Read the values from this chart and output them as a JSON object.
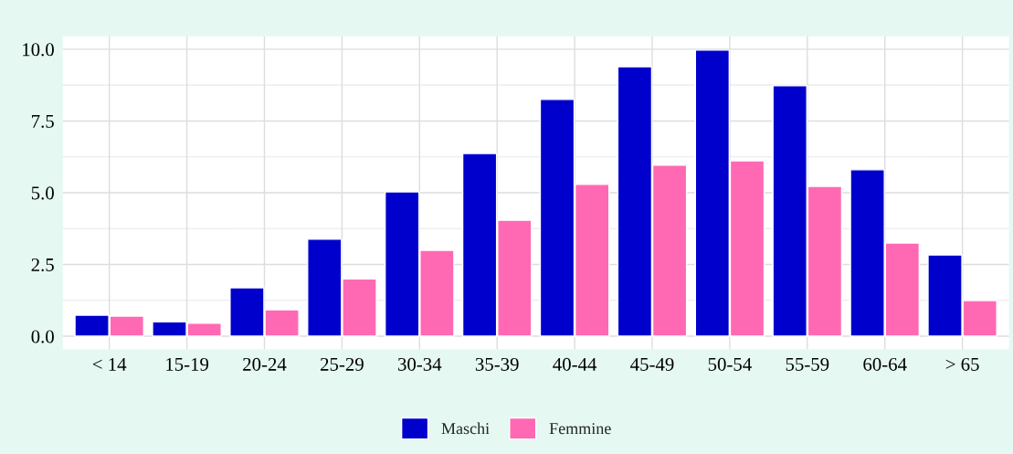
{
  "chart_data": {
    "type": "bar",
    "categories": [
      "< 14",
      "15-19",
      "20-24",
      "25-29",
      "30-34",
      "35-39",
      "40-44",
      "45-49",
      "50-54",
      "55-59",
      "60-64",
      "> 65"
    ],
    "series": [
      {
        "name": "Maschi",
        "color": "#0000cd",
        "values": [
          0.73,
          0.5,
          1.69,
          3.38,
          5.03,
          6.37,
          8.25,
          9.39,
          9.97,
          8.73,
          5.8,
          2.83
        ]
      },
      {
        "name": "Femmine",
        "color": "#ff69b4",
        "values": [
          0.7,
          0.45,
          0.92,
          2.0,
          2.99,
          4.04,
          5.29,
          5.96,
          6.11,
          5.22,
          3.25,
          1.24
        ]
      }
    ],
    "ylim": [
      -0.45,
      10.45
    ],
    "yticks": [
      {
        "value": 0,
        "label": "0.0"
      },
      {
        "value": 2.5,
        "label": "2.5"
      },
      {
        "value": 5,
        "label": "5.0"
      },
      {
        "value": 7.5,
        "label": "7.5"
      },
      {
        "value": 10,
        "label": "10.0"
      }
    ],
    "grid": true,
    "legend": "bottom"
  }
}
